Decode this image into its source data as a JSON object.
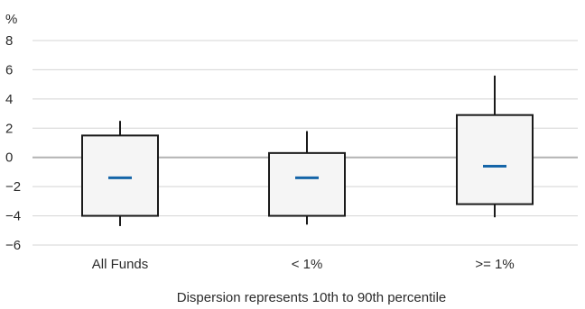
{
  "chart_data": {
    "type": "boxplot",
    "y_unit_label": "%",
    "ylim": [
      -6,
      8
    ],
    "y_ticks": [
      8,
      6,
      4,
      2,
      0,
      -2,
      -4,
      -6
    ],
    "y_tick_labels": [
      "8",
      "6",
      "4",
      "2",
      "0",
      "−2",
      "−4",
      "−6"
    ],
    "grid": true,
    "categories": [
      "All Funds",
      "< 1%",
      ">= 1%"
    ],
    "boxes": [
      {
        "category": "All Funds",
        "whisker_high": 2.5,
        "box_high": 1.5,
        "median": -1.4,
        "box_low": -4.0,
        "whisker_low": -4.7
      },
      {
        "category": "< 1%",
        "whisker_high": 1.8,
        "box_high": 0.3,
        "median": -1.4,
        "box_low": -4.0,
        "whisker_low": -4.6
      },
      {
        "category": ">= 1%",
        "whisker_high": 5.6,
        "box_high": 2.9,
        "median": -0.6,
        "box_low": -3.2,
        "whisker_low": -4.1
      }
    ],
    "caption": "Dispersion represents 10th to 90th percentile",
    "colors": {
      "box_fill": "#f5f5f5",
      "box_stroke": "#1a1a1a",
      "median": "#1565a8",
      "grid": "#d4d4d4",
      "zero_line": "#b3b3b3"
    }
  }
}
